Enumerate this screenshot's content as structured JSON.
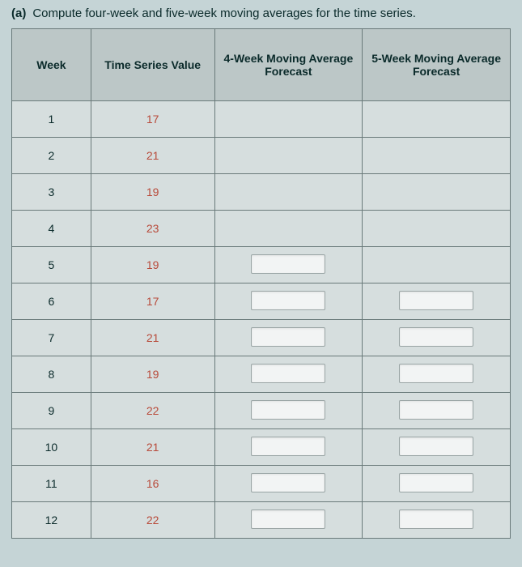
{
  "prompt": {
    "label": "(a)",
    "text": "Compute four-week and five-week moving averages for the time series."
  },
  "table": {
    "headers": {
      "week": "Week",
      "value": "Time Series Value",
      "ma4": "4-Week Moving Average Forecast",
      "ma5": "5-Week Moving Average Forecast"
    },
    "rows": [
      {
        "week": "1",
        "value": "17",
        "ma4_input": false,
        "ma5_input": false
      },
      {
        "week": "2",
        "value": "21",
        "ma4_input": false,
        "ma5_input": false
      },
      {
        "week": "3",
        "value": "19",
        "ma4_input": false,
        "ma5_input": false
      },
      {
        "week": "4",
        "value": "23",
        "ma4_input": false,
        "ma5_input": false
      },
      {
        "week": "5",
        "value": "19",
        "ma4_input": true,
        "ma5_input": false
      },
      {
        "week": "6",
        "value": "17",
        "ma4_input": true,
        "ma5_input": true
      },
      {
        "week": "7",
        "value": "21",
        "ma4_input": true,
        "ma5_input": true
      },
      {
        "week": "8",
        "value": "19",
        "ma4_input": true,
        "ma5_input": true
      },
      {
        "week": "9",
        "value": "22",
        "ma4_input": true,
        "ma5_input": true
      },
      {
        "week": "10",
        "value": "21",
        "ma4_input": true,
        "ma5_input": true
      },
      {
        "week": "11",
        "value": "16",
        "ma4_input": true,
        "ma5_input": true
      },
      {
        "week": "12",
        "value": "22",
        "ma4_input": true,
        "ma5_input": true
      }
    ]
  },
  "colors": {
    "page_bg": "#c5d4d6",
    "header_bg": "#bcc7c7",
    "cell_bg": "#d6dede",
    "border": "#6a7a7a",
    "text_dark": "#0a2a2a",
    "value_text": "#b84a3a",
    "input_bg": "#f2f4f4",
    "input_border": "#9aa5a5"
  }
}
